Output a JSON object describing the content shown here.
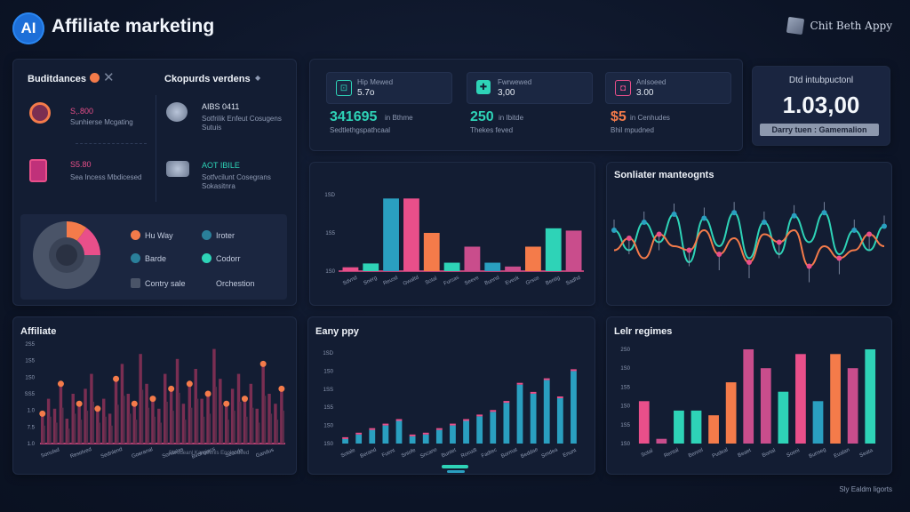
{
  "header": {
    "logo_text": "AI",
    "title": "Affiliate marketing",
    "user": "Chit Beth Appy",
    "cube_icon": "cube-icon"
  },
  "audiences": {
    "title": "Buditdances",
    "items": [
      {
        "value": "S,.800",
        "label": "Sunhierse Mcgating",
        "color": "#e94f8a"
      },
      {
        "value": "S5.80",
        "label": "Sea Incess Mbdicesed",
        "color": "#e94f8a"
      }
    ],
    "channels_title": "Ckopurds verdens",
    "channels": [
      {
        "value": "AIBS 0411",
        "label": "Sotfrilik Enfeut Cosugens",
        "sub": "Sutuis"
      },
      {
        "value": "AOT IBILE",
        "label": "Sotfvcilunt Cosegrans",
        "sub": "Sokasitnra"
      }
    ],
    "legend": [
      {
        "label": "Hu Way",
        "color": "#f47b4a"
      },
      {
        "label": "Iroter",
        "color": "#2a7f9a"
      },
      {
        "label": "Barde",
        "color": "#2a7f9a"
      },
      {
        "label": "Codorr",
        "color": "#2ed3b7"
      },
      {
        "label": "Contry sale",
        "color": "#4a5468"
      },
      {
        "label": "Orchestion",
        "color": "#4a5468"
      }
    ],
    "pie": [
      {
        "label": "Hu Way",
        "value": 10,
        "color": "#f47b4a"
      },
      {
        "label": "Barde",
        "value": 15,
        "color": "#e94f8a"
      },
      {
        "label": "Contry sale",
        "value": 75,
        "color": "#4a5468"
      }
    ]
  },
  "kpis": [
    {
      "label": "Hip Mewed",
      "value": "5.7o",
      "big": "341695",
      "big_suffix": "in Bthme",
      "caption": "Sedtlethgspathcaal",
      "icon": "#2ed3b7",
      "big_color": "#2ed3b7"
    },
    {
      "label": "Fwrwewed",
      "value": "3,00",
      "big": "250",
      "big_suffix": "in Ibitde",
      "caption": "Thekes feved",
      "icon": "#2ed3b7",
      "big_color": "#2ed3b7"
    },
    {
      "label": "Anlsoeed",
      "value": "3.00",
      "big": "$5",
      "big_suffix": "in Cenhudes",
      "caption": "Bhil mpudned",
      "icon": "#e94f8a",
      "big_color": "#f47b4a"
    }
  ],
  "total": {
    "caption": "Dtd intubpuctonl",
    "value": "1.03,00",
    "button": "Darry tuen : Gamemalion"
  },
  "bar_panel": {
    "yticks": [
      "1SD",
      "1S5",
      "1S0"
    ],
    "xlabels": [
      "Sdvnd",
      "Snerg",
      "Reusd",
      "Gwaltd",
      "Sotal",
      "Fursas",
      "Seeve",
      "Bunnd",
      "Evesk",
      "Grsse",
      "Bentig",
      "Sadhd"
    ],
    "chart_data": {
      "type": "bar",
      "categories": [
        "Sdvnd",
        "Snerg",
        "Reusd",
        "Gwaltd",
        "Sotal",
        "Fursas",
        "Seeve",
        "Bunnd",
        "Evesk",
        "Grsse",
        "Bentig",
        "Sadhd"
      ],
      "values": [
        5,
        10,
        95,
        95,
        50,
        11,
        32,
        11,
        6,
        32,
        56,
        53
      ],
      "colors": [
        "#e94f8a",
        "#2ed3b7",
        "#2a9fc0",
        "#e94f8a",
        "#f47b4a",
        "#2ed3b7",
        "#c94d8c",
        "#2a9fc0",
        "#c94d8c",
        "#f47b4a",
        "#2ed3b7",
        "#c94d8c"
      ],
      "ylim": [
        0,
        100
      ]
    }
  },
  "line_panel": {
    "title": "Sonliater manteognts",
    "chart_data": {
      "type": "line",
      "series": [
        {
          "name": "Teal",
          "color": "#2ed3b7",
          "values": [
            60,
            35,
            70,
            45,
            80,
            20,
            75,
            40,
            82,
            25,
            70,
            30,
            78,
            45,
            82,
            30,
            60,
            35,
            65
          ]
        },
        {
          "name": "Orange",
          "color": "#f47b4a",
          "values": [
            35,
            50,
            25,
            55,
            40,
            35,
            60,
            30,
            50,
            20,
            55,
            45,
            60,
            15,
            40,
            25,
            35,
            55,
            40
          ]
        }
      ],
      "ylim": [
        0,
        100
      ]
    }
  },
  "affiliate_panel": {
    "title": "Affiliate",
    "yticks": [
      "2S5",
      "1S5",
      "1S0",
      "SS5",
      "1.0",
      "7.5",
      "1.0"
    ],
    "xlabels": [
      "Sonulsd",
      "Resolved",
      "Sednlend",
      "Goeranal",
      "Sondalas",
      "Bvohgiacs",
      "Seonda",
      "Gandus"
    ],
    "bottom_caption": "Sorodeanl Kandlienls Enoloodeed",
    "chart_data": {
      "type": "bar",
      "x": [
        1,
        2,
        3,
        4,
        5,
        6,
        7,
        8,
        9,
        10,
        11,
        12,
        13,
        14,
        15,
        16,
        17,
        18,
        19,
        20,
        21,
        22,
        23,
        24,
        25,
        26,
        27,
        28,
        29,
        30,
        31,
        32,
        33,
        34,
        35,
        36,
        37,
        38,
        39,
        40
      ],
      "values": [
        30,
        45,
        35,
        60,
        25,
        50,
        40,
        55,
        70,
        35,
        45,
        30,
        65,
        80,
        50,
        40,
        90,
        60,
        45,
        35,
        70,
        55,
        85,
        40,
        60,
        75,
        45,
        50,
        95,
        65,
        40,
        55,
        70,
        45,
        60,
        35,
        80,
        50,
        40,
        55
      ],
      "color": "#7a2e52",
      "ylim": [
        0,
        100
      ]
    }
  },
  "early_panel": {
    "title": "Eany ppy",
    "yticks": [
      "1SD",
      "1S0",
      "1SS",
      "1S5",
      "1S0",
      "1S0"
    ],
    "xlabels": [
      "Sotale",
      "Berand",
      "Fuent",
      "Sniofe",
      "Sncane",
      "Buntet",
      "Rocudt",
      "Fadtec",
      "Bormat",
      "Beddae",
      "Srndea",
      "Enunt"
    ],
    "chart_data": {
      "type": "bar",
      "categories": [
        "1",
        "2",
        "3",
        "4",
        "5",
        "6",
        "7",
        "8",
        "9",
        "10",
        "11",
        "12",
        "13",
        "14",
        "15",
        "16",
        "17",
        "18"
      ],
      "values": [
        5,
        10,
        15,
        20,
        25,
        8,
        10,
        15,
        20,
        25,
        30,
        35,
        45,
        65,
        55,
        70,
        50,
        80
      ],
      "color": "#2a9fc0",
      "ylim": [
        0,
        100
      ]
    }
  },
  "right_panel": {
    "title": "Lelr regimes",
    "yticks": [
      "2S0",
      "1S0",
      "1S5",
      "1S0",
      "1S5",
      "1S0"
    ],
    "xlabels": [
      "Sotal",
      "Rental",
      "Benrel",
      "Pudeal",
      "Beaet",
      "Bortal",
      "Soeni",
      "Bunseg",
      "Eualan",
      "Seata"
    ],
    "chart_data": {
      "type": "bar",
      "categories": [
        "1",
        "2",
        "3",
        "4",
        "5",
        "6",
        "7",
        "8",
        "9",
        "10",
        "11",
        "12",
        "13",
        "14"
      ],
      "values": [
        45,
        5,
        35,
        35,
        30,
        65,
        100,
        80,
        55,
        95,
        45,
        95,
        80,
        100
      ],
      "colors": [
        "#e94f8a",
        "#c94d8c",
        "#2ed3b7",
        "#2ed3b7",
        "#f47b4a",
        "#f47b4a",
        "#c94d8c",
        "#c94d8c",
        "#2ed3b7",
        "#e94f8a",
        "#2a9fc0",
        "#f47b4a",
        "#c94d8c",
        "#2ed3b7"
      ],
      "ylim": [
        0,
        100
      ]
    }
  },
  "footer": {
    "text": "Sly Ealdm ligorts"
  }
}
